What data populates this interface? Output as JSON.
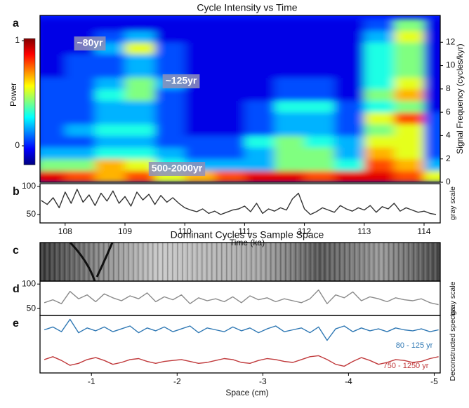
{
  "chart_data": [
    {
      "type": "heatmap",
      "panel": "a",
      "title": "Cycle Intensity vs Time",
      "xlim": [
        107.58,
        114.27
      ],
      "ylim": [
        0,
        14.3
      ],
      "yticks": [
        0,
        2,
        4,
        6,
        8,
        10,
        12
      ],
      "y_label": "Signal Frequency (cycles/kyr)",
      "colorbar": {
        "label": "Power",
        "ticks": [
          0,
          1
        ]
      },
      "annotations": [
        "~80yr",
        "~125yr",
        "500-2000yr"
      ],
      "x": [
        107.75,
        108.25,
        108.75,
        109.25,
        109.75,
        110.25,
        110.75,
        111.25,
        111.75,
        112.25,
        112.75,
        113.25,
        113.75,
        114.25
      ],
      "y": [
        0.5,
        1.5,
        2.5,
        3.5,
        4.5,
        5.5,
        6.5,
        7.5,
        8.5,
        9.5,
        10.5,
        11.5,
        12.5,
        13.5
      ],
      "z": [
        [
          0.9,
          0.8,
          0.7,
          0.8,
          0.6,
          0.7,
          0.8,
          0.9,
          0.9,
          0.8,
          0.9,
          0.9,
          0.8,
          0.6
        ],
        [
          0.5,
          0.5,
          0.7,
          0.6,
          0.4,
          0.3,
          0.3,
          0.3,
          0.5,
          0.5,
          0.4,
          0.8,
          0.7,
          0.3
        ],
        [
          0.3,
          0.3,
          0.4,
          0.4,
          0.3,
          0.2,
          0.2,
          0.3,
          0.5,
          0.5,
          0.3,
          0.7,
          0.6,
          0.2
        ],
        [
          0.2,
          0.2,
          0.3,
          0.3,
          0.2,
          0.2,
          0.2,
          0.4,
          0.5,
          0.4,
          0.3,
          0.6,
          0.6,
          0.2
        ],
        [
          0.2,
          0.3,
          0.4,
          0.4,
          0.2,
          0.1,
          0.1,
          0.2,
          0.3,
          0.3,
          0.2,
          0.5,
          0.6,
          0.2
        ],
        [
          0.2,
          0.2,
          0.3,
          0.3,
          0.2,
          0.1,
          0.1,
          0.2,
          0.3,
          0.3,
          0.2,
          0.6,
          0.8,
          0.2
        ],
        [
          0.2,
          0.2,
          0.3,
          0.3,
          0.2,
          0.1,
          0.1,
          0.2,
          0.4,
          0.4,
          0.2,
          0.4,
          0.5,
          0.1
        ],
        [
          0.2,
          0.2,
          0.4,
          0.5,
          0.2,
          0.1,
          0.1,
          0.1,
          0.2,
          0.2,
          0.1,
          0.5,
          0.7,
          0.1
        ],
        [
          0.2,
          0.2,
          0.3,
          0.5,
          0.3,
          0.1,
          0.1,
          0.1,
          0.2,
          0.2,
          0.1,
          0.4,
          0.6,
          0.1
        ],
        [
          0.1,
          0.2,
          0.2,
          0.3,
          0.2,
          0.1,
          0.1,
          0.1,
          0.1,
          0.1,
          0.1,
          0.4,
          0.5,
          0.1
        ],
        [
          0.1,
          0.2,
          0.2,
          0.3,
          0.2,
          0.1,
          0.1,
          0.1,
          0.1,
          0.1,
          0.1,
          0.4,
          0.5,
          0.1
        ],
        [
          0.1,
          0.1,
          0.3,
          0.6,
          0.2,
          0.1,
          0.1,
          0.1,
          0.1,
          0.1,
          0.1,
          0.4,
          0.5,
          0.1
        ],
        [
          0.1,
          0.1,
          0.2,
          0.3,
          0.1,
          0.1,
          0.1,
          0.1,
          0.1,
          0.1,
          0.1,
          0.3,
          0.6,
          0.1
        ],
        [
          0.1,
          0.1,
          0.1,
          0.1,
          0.1,
          0.1,
          0.1,
          0.1,
          0.1,
          0.1,
          0.1,
          0.2,
          0.5,
          0.1
        ]
      ]
    },
    {
      "type": "line",
      "panel": "b",
      "xlim": [
        107.58,
        114.27
      ],
      "ylim": [
        35,
        105
      ],
      "xticks": [
        108,
        109,
        110,
        111,
        112,
        113,
        114
      ],
      "yticks": [
        50,
        100
      ],
      "x_label": "Time (ka)",
      "y_label": "gray scale",
      "x": [
        107.6,
        107.7,
        107.8,
        107.9,
        108.0,
        108.1,
        108.2,
        108.3,
        108.4,
        108.5,
        108.6,
        108.7,
        108.8,
        108.9,
        109.0,
        109.1,
        109.2,
        109.3,
        109.4,
        109.5,
        109.6,
        109.7,
        109.8,
        109.9,
        110.0,
        110.1,
        110.2,
        110.3,
        110.4,
        110.5,
        110.6,
        110.7,
        110.8,
        110.9,
        111.0,
        111.1,
        111.2,
        111.3,
        111.4,
        111.5,
        111.6,
        111.7,
        111.8,
        111.9,
        112.0,
        112.1,
        112.2,
        112.3,
        112.4,
        112.5,
        112.6,
        112.7,
        112.8,
        112.9,
        113.0,
        113.1,
        113.2,
        113.3,
        113.4,
        113.5,
        113.6,
        113.7,
        113.8,
        113.9,
        114.0,
        114.1,
        114.2
      ],
      "series": [
        {
          "color": "#333333",
          "values": [
            75,
            68,
            80,
            62,
            90,
            70,
            95,
            72,
            85,
            66,
            88,
            74,
            92,
            70,
            82,
            65,
            90,
            76,
            86,
            68,
            84,
            72,
            80,
            70,
            62,
            58,
            55,
            60,
            52,
            56,
            50,
            54,
            58,
            60,
            65,
            55,
            70,
            52,
            60,
            56,
            62,
            58,
            78,
            88,
            60,
            50,
            55,
            62,
            58,
            54,
            66,
            60,
            56,
            62,
            58,
            66,
            54,
            64,
            60,
            70,
            56,
            62,
            58,
            54,
            56,
            52,
            50
          ]
        }
      ]
    },
    {
      "type": "image",
      "panel": "c",
      "title": "Dominant Cycles vs Sample Space"
    },
    {
      "type": "line",
      "panel": "d",
      "xlim": [
        -0.4,
        -5.07
      ],
      "ylim": [
        36,
        106
      ],
      "yticks": [
        50,
        100
      ],
      "y_label": "gray scale",
      "x": [
        -0.45,
        -0.55,
        -0.65,
        -0.75,
        -0.85,
        -0.95,
        -1.05,
        -1.15,
        -1.25,
        -1.35,
        -1.45,
        -1.55,
        -1.65,
        -1.75,
        -1.85,
        -1.95,
        -2.05,
        -2.15,
        -2.25,
        -2.35,
        -2.45,
        -2.55,
        -2.65,
        -2.75,
        -2.85,
        -2.95,
        -3.05,
        -3.15,
        -3.25,
        -3.35,
        -3.45,
        -3.55,
        -3.65,
        -3.75,
        -3.85,
        -3.95,
        -4.05,
        -4.15,
        -4.25,
        -4.35,
        -4.45,
        -4.55,
        -4.65,
        -4.75,
        -4.85,
        -4.95,
        -5.05
      ],
      "series": [
        {
          "color": "#8a8a8a",
          "values": [
            62,
            68,
            60,
            85,
            70,
            78,
            64,
            80,
            72,
            66,
            76,
            70,
            82,
            64,
            74,
            68,
            78,
            60,
            72,
            66,
            70,
            64,
            74,
            62,
            76,
            68,
            72,
            64,
            70,
            66,
            62,
            70,
            88,
            60,
            78,
            72,
            84,
            66,
            74,
            70,
            64,
            72,
            68,
            66,
            70,
            62,
            58
          ]
        }
      ]
    },
    {
      "type": "line",
      "panel": "e",
      "xlim": [
        -0.4,
        -5.07
      ],
      "ylim": [
        -3,
        3
      ],
      "xticks": [
        -1,
        -2,
        -3,
        -4,
        -5
      ],
      "x_label": "Space (cm)",
      "y_label": "Deconstructed spectra",
      "x": [
        -0.45,
        -0.55,
        -0.65,
        -0.75,
        -0.85,
        -0.95,
        -1.05,
        -1.15,
        -1.25,
        -1.35,
        -1.45,
        -1.55,
        -1.65,
        -1.75,
        -1.85,
        -1.95,
        -2.05,
        -2.15,
        -2.25,
        -2.35,
        -2.45,
        -2.55,
        -2.65,
        -2.75,
        -2.85,
        -2.95,
        -3.05,
        -3.15,
        -3.25,
        -3.35,
        -3.45,
        -3.55,
        -3.65,
        -3.75,
        -3.85,
        -3.95,
        -4.05,
        -4.15,
        -4.25,
        -4.35,
        -4.45,
        -4.55,
        -4.65,
        -4.75,
        -4.85,
        -4.95,
        -5.05
      ],
      "series": [
        {
          "name": "80 - 125 yr",
          "color": "#2f78b4",
          "values": [
            1.5,
            1.8,
            1.3,
            2.6,
            1.2,
            1.7,
            1.4,
            1.8,
            1.3,
            1.6,
            1.9,
            1.2,
            1.7,
            1.4,
            1.8,
            1.3,
            1.6,
            1.9,
            1.2,
            1.7,
            1.5,
            1.3,
            1.8,
            1.4,
            1.7,
            1.2,
            1.6,
            1.9,
            1.3,
            1.5,
            1.7,
            1.2,
            1.8,
            0.4,
            1.6,
            1.9,
            1.3,
            1.7,
            1.4,
            1.6,
            1.3,
            1.7,
            1.5,
            1.4,
            1.6,
            1.3,
            1.5
          ]
        },
        {
          "name": "750 - 1250 yr",
          "color": "#c0393b",
          "values": [
            -1.6,
            -1.3,
            -1.7,
            -2.2,
            -2.0,
            -1.6,
            -1.4,
            -1.7,
            -2.1,
            -1.9,
            -1.6,
            -1.5,
            -1.8,
            -2.0,
            -1.8,
            -1.7,
            -1.6,
            -1.8,
            -2.0,
            -1.9,
            -1.7,
            -1.5,
            -1.6,
            -1.9,
            -2.0,
            -1.7,
            -1.5,
            -1.6,
            -1.8,
            -1.9,
            -1.6,
            -1.3,
            -1.2,
            -1.6,
            -2.1,
            -2.3,
            -1.8,
            -1.4,
            -1.7,
            -2.1,
            -1.9,
            -1.6,
            -1.7,
            -1.9,
            -1.8,
            -1.5,
            -1.3
          ]
        }
      ]
    }
  ]
}
